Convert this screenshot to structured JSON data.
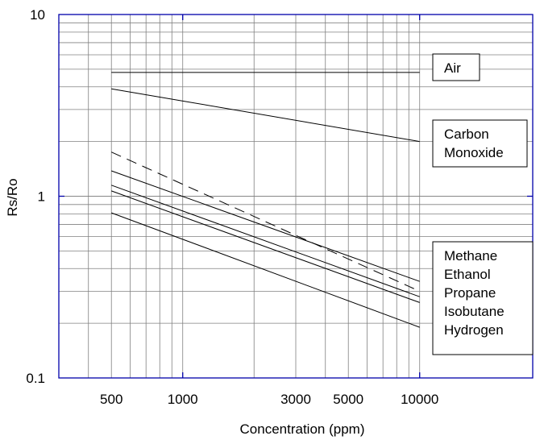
{
  "chart_data": {
    "type": "line",
    "xscale": "log",
    "yscale": "log",
    "xlim": [
      300,
      30000
    ],
    "ylim": [
      0.1,
      10
    ],
    "xlabel": "Concentration (ppm)",
    "ylabel": "Rs/Ro",
    "xticks": [
      {
        "value": 500,
        "label": "500"
      },
      {
        "value": 1000,
        "label": "1000"
      },
      {
        "value": 3000,
        "label": "3000"
      },
      {
        "value": 5000,
        "label": "5000"
      },
      {
        "value": 10000,
        "label": "10000"
      }
    ],
    "yticks": [
      {
        "value": 0.1,
        "label": "0.1"
      },
      {
        "value": 1,
        "label": "1"
      },
      {
        "value": 10,
        "label": "10"
      }
    ],
    "grid": true,
    "series": [
      {
        "name": "Air",
        "style": "solid",
        "x": [
          500,
          10000
        ],
        "y": [
          4.8,
          4.8
        ]
      },
      {
        "name": "Carbon Monoxide",
        "style": "solid",
        "x": [
          500,
          10000
        ],
        "y": [
          3.9,
          2.0
        ]
      },
      {
        "name": "Methane",
        "style": "dashed",
        "x": [
          500,
          10000
        ],
        "y": [
          1.75,
          0.3
        ]
      },
      {
        "name": "Ethanol",
        "style": "solid",
        "x": [
          500,
          10000
        ],
        "y": [
          1.38,
          0.34
        ]
      },
      {
        "name": "Propane",
        "style": "solid",
        "x": [
          500,
          10000
        ],
        "y": [
          1.15,
          0.28
        ]
      },
      {
        "name": "Isobutane",
        "style": "solid",
        "x": [
          500,
          10000
        ],
        "y": [
          1.07,
          0.26
        ]
      },
      {
        "name": "Hydrogen",
        "style": "solid",
        "x": [
          500,
          10000
        ],
        "y": [
          0.81,
          0.19
        ]
      }
    ],
    "legend": [
      {
        "lines": [
          "Air"
        ]
      },
      {
        "lines": [
          "Carbon",
          "Monoxide"
        ]
      },
      {
        "lines": [
          "Methane",
          "Ethanol",
          "Propane",
          "Isobutane",
          "Hydrogen"
        ]
      }
    ],
    "colors": {
      "frame": "#0000aa",
      "grid": "#808080",
      "line": "#000000"
    }
  }
}
